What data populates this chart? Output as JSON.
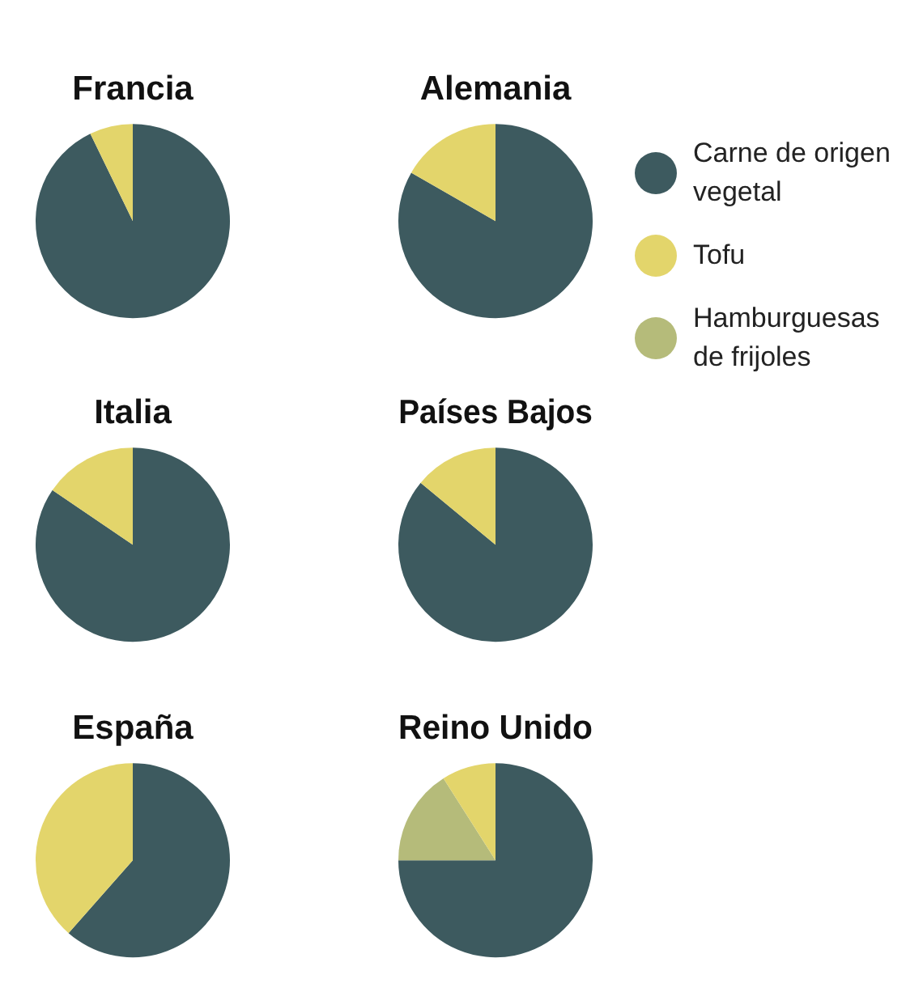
{
  "chart_data": [
    {
      "type": "pie",
      "title": "Francia",
      "categories": [
        null,
        null,
        null
      ],
      "values": [
        92.8,
        7.2,
        0
      ],
      "colors": [
        "#3d5a5f",
        "#e3d56b",
        "#b5bb7a"
      ],
      "legend": false
    },
    {
      "type": "pie",
      "title": "Alemania",
      "categories": [
        "Carne de origen vegetal",
        "Tofu",
        "Hamburguesas de frijoles"
      ],
      "values": [
        83.3,
        16.7,
        0
      ],
      "colors": [
        "#3d5a5f",
        "#e3d56b",
        "#b5bb7a"
      ],
      "legend": "right"
    },
    {
      "type": "pie",
      "title": "Italia",
      "categories": [
        null,
        null,
        null
      ],
      "values": [
        84.5,
        15.5,
        0
      ],
      "colors": [
        "#3d5a5f",
        "#e3d56b",
        "#b5bb7a"
      ],
      "legend": false
    },
    {
      "type": "pie",
      "title": "Países Bajos",
      "categories": [
        null,
        null,
        null
      ],
      "values": [
        86,
        14,
        0
      ],
      "colors": [
        "#3d5a5f",
        "#e3d56b",
        "#b5bb7a"
      ],
      "legend": false
    },
    {
      "type": "pie",
      "title": "España",
      "categories": [
        null,
        null,
        null
      ],
      "values": [
        61.5,
        38.5,
        0
      ],
      "colors": [
        "#3d5a5f",
        "#e3d56b",
        "#b5bb7a"
      ],
      "legend": false
    },
    {
      "type": "pie",
      "title": "Reino Unido",
      "categories": [
        null,
        null,
        null
      ],
      "values": [
        75,
        9,
        16
      ],
      "colors": [
        "#3d5a5f",
        "#e3d56b",
        "#b5bb7a"
      ],
      "legend": false
    }
  ]
}
